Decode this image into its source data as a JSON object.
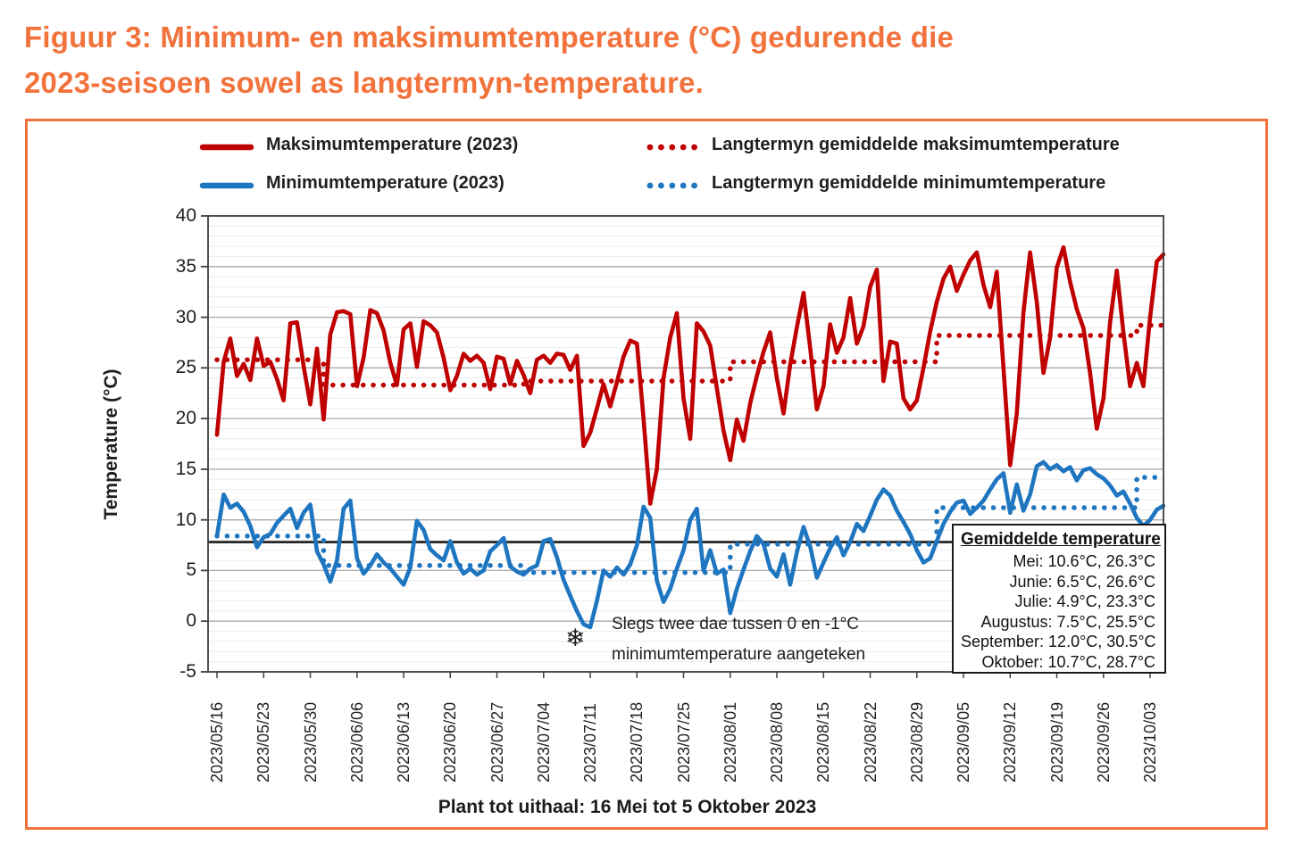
{
  "figure": {
    "title_line1": "Figuur 3: Minimum- en maksimumtemperature (°C) gedurende die",
    "title_line2": "2023-seisoen sowel as langtermyn-temperature."
  },
  "colors": {
    "accent_orange": "#f2723c",
    "max_red": "#c00000",
    "min_blue": "#1e75c0",
    "reference_black": "#1a1a1a",
    "grid_major": "#a8a8a8",
    "grid_minor": "#ececec",
    "axis_dark": "#3f3f3f"
  },
  "legend": [
    {
      "label": "Maksimumtemperature (2023)",
      "style": "solid",
      "color": "#c00000"
    },
    {
      "label": "Minimumtemperature (2023)",
      "style": "solid",
      "color": "#1e75c0"
    },
    {
      "label": "Langtermyn gemiddelde maksimumtemperature",
      "style": "dotted",
      "color": "#c00000"
    },
    {
      "label": "Langtermyn gemiddelde minimumtemperature",
      "style": "dotted",
      "color": "#1e75c0"
    }
  ],
  "chart_data": {
    "type": "line",
    "ylabel": "Temperature (°C)",
    "ylim": [
      -5,
      40
    ],
    "y_ticks": [
      40,
      35,
      30,
      25,
      20,
      15,
      10,
      5,
      0,
      -5
    ],
    "x_start_date": "2023/05/16",
    "x_end_date": "2023/10/05",
    "x_tick_interval_days": 7,
    "x_tick_labels": [
      "2023/05/16",
      "2023/05/23",
      "2023/05/30",
      "2023/06/06",
      "2023/06/13",
      "2023/06/20",
      "2023/06/27",
      "2023/07/04",
      "2023/07/11",
      "2023/07/18",
      "2023/07/25",
      "2023/08/01",
      "2023/08/08",
      "2023/08/15",
      "2023/08/22",
      "2023/08/29",
      "2023/09/05",
      "2023/09/12",
      "2023/09/19",
      "2023/09/26",
      "2023/10/03"
    ],
    "grid": {
      "major_every": 5,
      "minor_every": 1,
      "vertical": false
    },
    "reference_line": {
      "value": 7.8,
      "color": "#1a1a1a"
    },
    "series": [
      {
        "name": "Maksimumtemperature (2023)",
        "style": "solid",
        "color": "#c00000",
        "values": [
          18.4,
          25.6,
          27.9,
          24.2,
          25.4,
          23.8,
          27.9,
          25.2,
          25.6,
          23.9,
          21.8,
          29.4,
          29.5,
          25.2,
          21.4,
          26.9,
          19.9,
          28.3,
          30.5,
          30.6,
          30.3,
          23.2,
          26.0,
          30.7,
          30.4,
          28.7,
          25.5,
          23.3,
          28.8,
          29.4,
          25.1,
          29.6,
          29.2,
          28.5,
          26.0,
          22.8,
          24.2,
          26.4,
          25.7,
          26.2,
          25.5,
          22.9,
          26.1,
          25.9,
          23.4,
          25.7,
          24.3,
          22.5,
          25.8,
          26.2,
          25.5,
          26.4,
          26.3,
          24.8,
          26.2,
          17.3,
          18.6,
          21.0,
          23.4,
          21.2,
          23.6,
          26.1,
          27.7,
          27.4,
          20.0,
          11.6,
          15.0,
          24.0,
          28.0,
          30.4,
          22.0,
          18.0,
          29.4,
          28.6,
          27.2,
          23.0,
          18.8,
          15.9,
          19.9,
          17.8,
          21.5,
          24.2,
          26.6,
          28.5,
          24.0,
          20.5,
          25.3,
          29.0,
          32.4,
          27.0,
          20.9,
          23.2,
          29.3,
          26.5,
          28.0,
          31.9,
          27.4,
          29.1,
          33.0,
          34.7,
          23.7,
          27.6,
          27.4,
          22.0,
          20.9,
          21.8,
          25.0,
          28.6,
          31.5,
          33.8,
          35.0,
          32.6,
          34.2,
          35.6,
          36.4,
          33.2,
          31.0,
          34.5,
          25.0,
          15.4,
          20.5,
          30.5,
          36.4,
          31.5,
          24.5,
          28.0,
          34.9,
          36.9,
          33.5,
          30.8,
          28.9,
          24.5,
          19.0,
          22.0,
          29.5,
          34.6,
          28.5,
          23.2,
          25.5,
          23.2,
          30.0,
          35.5,
          36.2
        ]
      },
      {
        "name": "Minimumtemperature (2023)",
        "style": "solid",
        "color": "#1e75c0",
        "values": [
          8.4,
          12.5,
          11.2,
          11.6,
          10.8,
          9.4,
          7.3,
          8.3,
          8.6,
          9.7,
          10.4,
          11.1,
          9.2,
          10.7,
          11.5,
          6.9,
          5.6,
          3.9,
          6.0,
          11.1,
          11.9,
          6.2,
          4.7,
          5.5,
          6.6,
          5.8,
          5.2,
          4.4,
          3.6,
          5.3,
          9.9,
          9.0,
          7.1,
          6.5,
          6.0,
          7.9,
          5.8,
          4.7,
          5.2,
          4.6,
          5.0,
          6.9,
          7.5,
          8.2,
          5.4,
          4.9,
          4.6,
          5.2,
          5.5,
          7.9,
          8.1,
          6.3,
          4.1,
          2.5,
          1.0,
          -0.3,
          -0.6,
          2.0,
          5.0,
          4.4,
          5.3,
          4.6,
          5.6,
          7.5,
          11.3,
          10.2,
          4.0,
          1.9,
          3.2,
          5.2,
          7.0,
          10.0,
          11.1,
          5.0,
          7.0,
          4.7,
          5.1,
          0.8,
          3.2,
          5.1,
          6.9,
          8.4,
          7.6,
          5.2,
          4.4,
          6.6,
          3.6,
          6.8,
          9.3,
          7.4,
          4.3,
          5.8,
          7.2,
          8.3,
          6.5,
          7.8,
          9.6,
          8.9,
          10.4,
          12.0,
          13.0,
          12.4,
          10.9,
          9.8,
          8.6,
          7.0,
          5.8,
          6.2,
          7.9,
          9.6,
          10.8,
          11.7,
          11.9,
          10.6,
          11.2,
          11.9,
          13.0,
          14.0,
          14.6,
          10.7,
          13.5,
          10.9,
          12.5,
          15.3,
          15.7,
          15.0,
          15.4,
          14.8,
          15.2,
          13.9,
          14.9,
          15.1,
          14.5,
          14.1,
          13.4,
          12.4,
          12.8,
          11.6,
          10.2,
          9.4,
          10.0,
          11.0,
          11.4
        ]
      },
      {
        "name": "Langtermyn gemiddelde maksimumtemperature",
        "style": "dotted",
        "color": "#c00000",
        "segments": [
          {
            "period": "Mei",
            "from_day": 0,
            "to_day": 16,
            "value": 25.8
          },
          {
            "period": "Junie",
            "from_day": 16,
            "to_day": 46,
            "value": 23.3
          },
          {
            "period": "Julie",
            "from_day": 46,
            "to_day": 77,
            "value": 23.7
          },
          {
            "period": "Augustus",
            "from_day": 77,
            "to_day": 108,
            "value": 25.6
          },
          {
            "period": "September",
            "from_day": 108,
            "to_day": 138,
            "value": 28.2
          },
          {
            "period": "Oktober",
            "from_day": 138,
            "to_day": 142,
            "value": 29.2
          }
        ]
      },
      {
        "name": "Langtermyn gemiddelde minimumtemperature",
        "style": "dotted",
        "color": "#1e75c0",
        "segments": [
          {
            "period": "Mei",
            "from_day": 0,
            "to_day": 16,
            "value": 8.4
          },
          {
            "period": "Junie",
            "from_day": 16,
            "to_day": 46,
            "value": 5.5
          },
          {
            "period": "Julie",
            "from_day": 46,
            "to_day": 77,
            "value": 4.8
          },
          {
            "period": "Augustus",
            "from_day": 77,
            "to_day": 108,
            "value": 7.6
          },
          {
            "period": "September",
            "from_day": 108,
            "to_day": 138,
            "value": 11.2
          },
          {
            "period": "Oktober",
            "from_day": 138,
            "to_day": 142,
            "value": 14.2
          }
        ]
      }
    ],
    "annotation": {
      "line1": "Slegs twee dae tussen 0 en -1°C",
      "line2": "minimumtemperature aangeteken",
      "icon": "snowflake-icon",
      "icon_glyph": "❄",
      "frost_days": [
        "2023/07/10",
        "2023/07/11"
      ]
    }
  },
  "averages_box": {
    "title": "Gemiddelde temperature",
    "rows": [
      "Mei: 10.6°C, 26.3°C",
      "Junie: 6.5°C, 26.6°C",
      "Julie: 4.9°C, 23.3°C",
      "Augustus: 7.5°C, 25.5°C",
      "September: 12.0°C, 30.5°C",
      "Oktober: 10.7°C, 28.7°C"
    ]
  },
  "x_axis_caption": "Plant tot uithaal: 16 Mei tot 5 Oktober 2023"
}
